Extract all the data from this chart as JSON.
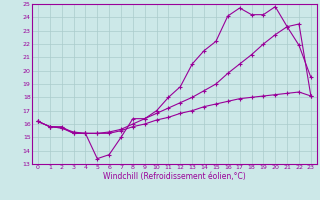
{
  "xlabel": "Windchill (Refroidissement éolien,°C)",
  "bg_color": "#cce8e8",
  "grid_color": "#aacccc",
  "line_color": "#990099",
  "xlim": [
    -0.5,
    23.5
  ],
  "ylim": [
    13,
    25
  ],
  "yticks": [
    13,
    14,
    15,
    16,
    17,
    18,
    19,
    20,
    21,
    22,
    23,
    24,
    25
  ],
  "xticks": [
    0,
    1,
    2,
    3,
    4,
    5,
    6,
    7,
    8,
    9,
    10,
    11,
    12,
    13,
    14,
    15,
    16,
    17,
    18,
    19,
    20,
    21,
    22,
    23
  ],
  "series1_x": [
    0,
    1,
    2,
    3,
    4,
    5,
    6,
    7,
    8,
    9,
    10,
    11,
    12,
    13,
    14,
    15,
    16,
    17,
    18,
    19,
    20,
    21,
    22,
    23
  ],
  "series1_y": [
    16.2,
    15.8,
    15.8,
    15.3,
    15.3,
    13.4,
    13.7,
    15.0,
    16.4,
    16.4,
    17.0,
    18.0,
    18.8,
    20.5,
    21.5,
    22.2,
    24.1,
    24.7,
    24.2,
    24.2,
    24.8,
    23.3,
    21.9,
    19.5
  ],
  "series2_x": [
    0,
    1,
    2,
    3,
    4,
    5,
    6,
    7,
    8,
    9,
    10,
    11,
    12,
    13,
    14,
    15,
    16,
    17,
    18,
    19,
    20,
    21,
    22,
    23
  ],
  "series2_y": [
    16.2,
    15.8,
    15.7,
    15.3,
    15.3,
    15.3,
    15.3,
    15.5,
    15.8,
    16.0,
    16.3,
    16.5,
    16.8,
    17.0,
    17.3,
    17.5,
    17.7,
    17.9,
    18.0,
    18.1,
    18.2,
    18.3,
    18.4,
    18.1
  ],
  "series3_x": [
    0,
    1,
    2,
    3,
    4,
    5,
    6,
    7,
    8,
    9,
    10,
    11,
    12,
    13,
    14,
    15,
    16,
    17,
    18,
    19,
    20,
    21,
    22,
    23
  ],
  "series3_y": [
    16.2,
    15.8,
    15.7,
    15.4,
    15.3,
    15.3,
    15.4,
    15.6,
    16.0,
    16.4,
    16.8,
    17.2,
    17.6,
    18.0,
    18.5,
    19.0,
    19.8,
    20.5,
    21.2,
    22.0,
    22.7,
    23.3,
    23.5,
    18.1
  ],
  "tick_fontsize": 4.5,
  "xlabel_fontsize": 5.5,
  "marker_size": 3,
  "linewidth": 0.8
}
